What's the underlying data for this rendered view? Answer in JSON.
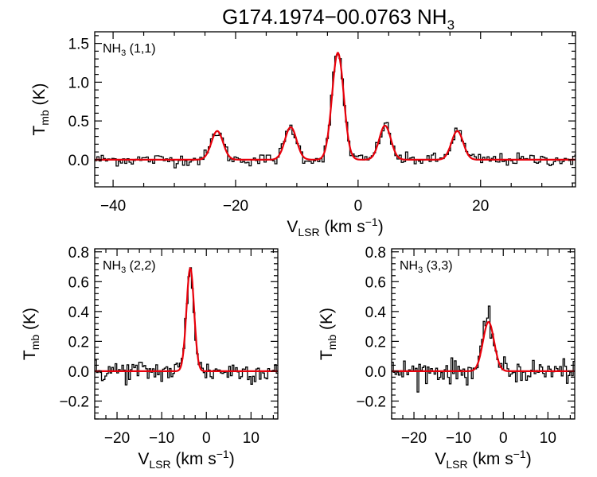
{
  "figure": {
    "title": "G174.1974−00.0763 NH",
    "title_sub": "3"
  },
  "colors": {
    "observed": "#000000",
    "fit": "#e8000b",
    "axes": "#000000",
    "background": "#ffffff"
  },
  "chart_data": [
    {
      "type": "line",
      "panel_label": "NH",
      "panel_label_sub": "3",
      "panel_label_tail": " (1,1)",
      "xlabel_main": "V",
      "xlabel_sub": "LSR",
      "xlabel_tail": " (km s",
      "xlabel_sup": "−1",
      "xlabel_end": ")",
      "ylabel_main": "T",
      "ylabel_sub": "mb",
      "ylabel_tail": " (K)",
      "xlim": [
        -43,
        35.5
      ],
      "ylim": [
        -0.35,
        1.65
      ],
      "xticks": [
        -40,
        -20,
        0,
        20
      ],
      "xtick_labels": [
        "−40",
        "−20",
        "0",
        "20"
      ],
      "yticks": [
        0.0,
        0.5,
        1.0,
        1.5
      ],
      "ytick_labels": [
        "0.0",
        "0.5",
        "1.0",
        "1.5"
      ],
      "components": [
        {
          "v": -23.0,
          "peak": 0.37,
          "sigma": 0.95
        },
        {
          "v": -11.0,
          "peak": 0.42,
          "sigma": 0.95
        },
        {
          "v": -3.3,
          "peak": 1.38,
          "sigma": 0.95
        },
        {
          "v": 4.4,
          "peak": 0.44,
          "sigma": 0.95
        },
        {
          "v": 16.2,
          "peak": 0.37,
          "sigma": 0.95
        }
      ],
      "noise": 0.04,
      "channel_width": 0.35,
      "series": [
        {
          "kind": "histogram"
        },
        {
          "kind": "fit"
        }
      ]
    },
    {
      "type": "line",
      "panel_label": "NH",
      "panel_label_sub": "3",
      "panel_label_tail": " (2,2)",
      "xlabel_main": "V",
      "xlabel_sub": "LSR",
      "xlabel_tail": " (km s",
      "xlabel_sup": "−1",
      "xlabel_end": ")",
      "ylabel_main": "T",
      "ylabel_sub": "mb",
      "ylabel_tail": " (K)",
      "xlim": [
        -25,
        16
      ],
      "ylim": [
        -0.32,
        0.82
      ],
      "xticks": [
        -20,
        -10,
        0,
        10
      ],
      "xtick_labels": [
        "−20",
        "−10",
        "0",
        "10"
      ],
      "yticks": [
        -0.2,
        0.0,
        0.2,
        0.4,
        0.6,
        0.8
      ],
      "ytick_labels": [
        "−0.2",
        "0.0",
        "0.2",
        "0.4",
        "0.6",
        "0.8"
      ],
      "components": [
        {
          "v": -3.6,
          "peak": 0.69,
          "sigma": 0.85
        }
      ],
      "noise": 0.04,
      "channel_width": 0.38,
      "series": [
        {
          "kind": "histogram"
        },
        {
          "kind": "fit"
        }
      ]
    },
    {
      "type": "line",
      "panel_label": "NH",
      "panel_label_sub": "3",
      "panel_label_tail": " (3,3)",
      "xlabel_main": "V",
      "xlabel_sub": "LSR",
      "xlabel_tail": " (km s",
      "xlabel_sup": "−1",
      "xlabel_end": ")",
      "ylabel_main": "T",
      "ylabel_sub": "mb",
      "ylabel_tail": " (K)",
      "xlim": [
        -25,
        16
      ],
      "ylim": [
        -0.32,
        0.82
      ],
      "xticks": [
        -20,
        -10,
        0,
        10
      ],
      "xtick_labels": [
        "−20",
        "−10",
        "0",
        "10"
      ],
      "yticks": [
        -0.2,
        0.0,
        0.2,
        0.4,
        0.6,
        0.8
      ],
      "ytick_labels": [
        "−0.2",
        "0.0",
        "0.2",
        "0.4",
        "0.6",
        "0.8"
      ],
      "components": [
        {
          "v": -3.3,
          "peak": 0.33,
          "sigma": 1.25
        }
      ],
      "noise": 0.04,
      "channel_width": 0.38,
      "series": [
        {
          "kind": "histogram"
        },
        {
          "kind": "fit"
        }
      ]
    }
  ]
}
